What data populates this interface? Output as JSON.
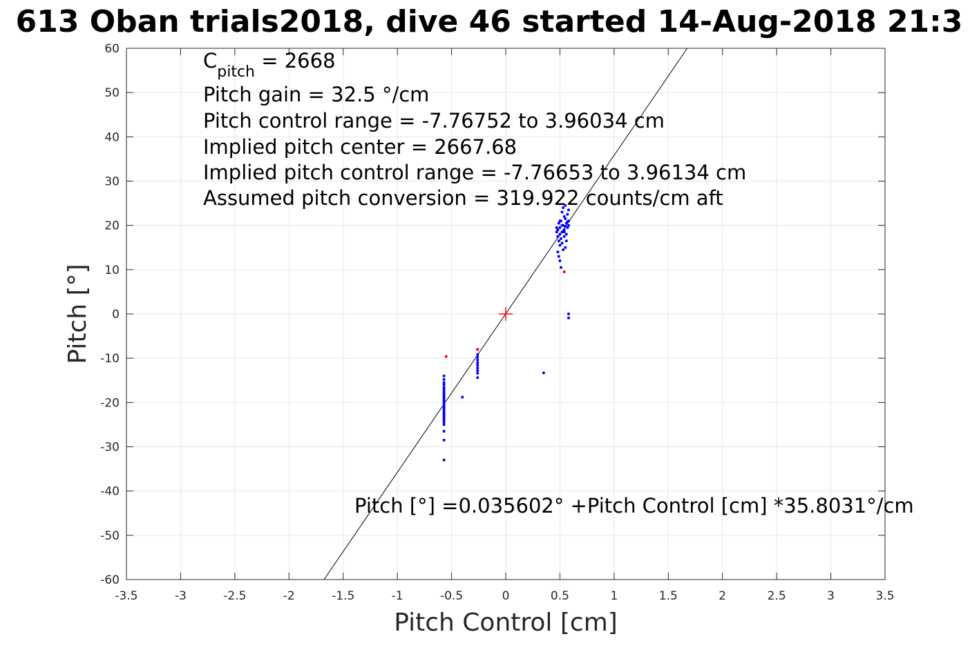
{
  "chart_data": {
    "type": "scatter",
    "title": "613 Oban trials2018, dive 46 started 14-Aug-2018 21:3",
    "xlabel": "Pitch Control [cm]",
    "ylabel": "Pitch [°]",
    "xlim": [
      -3.5,
      3.5
    ],
    "ylim": [
      -60,
      60
    ],
    "xticks": [
      -3.5,
      -3,
      -2.5,
      -2,
      -1.5,
      -1,
      -0.5,
      0,
      0.5,
      1,
      1.5,
      2,
      2.5,
      3,
      3.5
    ],
    "xtick_labels": [
      "-3.5",
      "-3",
      "-2.5",
      "-2",
      "-1.5",
      "-1",
      "-0.5",
      "0",
      "0.5",
      "1",
      "1.5",
      "2",
      "2.5",
      "3",
      "3.5"
    ],
    "yticks": [
      -60,
      -50,
      -40,
      -30,
      -20,
      -10,
      0,
      10,
      20,
      30,
      40,
      50,
      60
    ],
    "ytick_labels": [
      "-60",
      "-50",
      "-40",
      "-30",
      "-20",
      "-10",
      "0",
      "10",
      "20",
      "30",
      "40",
      "50",
      "60"
    ],
    "grid": true,
    "fit_line": {
      "intercept": 0.035602,
      "slope": 35.8031,
      "color": "#000000"
    },
    "center_marker": {
      "x": 0,
      "y": 0,
      "color": "#ff0000",
      "symbol": "+"
    },
    "annotations": {
      "c_pitch_symbol": "C",
      "c_pitch_sub": "pitch",
      "c_pitch_value": " = 2668",
      "lines": [
        "Pitch gain = 32.5 °/cm",
        "Pitch control range = -7.76752 to 3.96034 cm",
        "Implied pitch center = 2667.68",
        "Implied pitch control range = -7.76653 to 3.96134 cm",
        "Assumed pitch conversion = 319.922 counts/cm aft"
      ],
      "equation": "Pitch [°] =0.035602° +Pitch Control [cm] *35.8031°/cm"
    },
    "series": [
      {
        "color": "#0000ff",
        "points": [
          [
            -0.57,
            -14.0
          ],
          [
            -0.57,
            -14.8
          ],
          [
            -0.57,
            -15.5
          ],
          [
            -0.57,
            -16.0
          ],
          [
            -0.57,
            -16.6
          ],
          [
            -0.57,
            -17.1
          ],
          [
            -0.57,
            -17.6
          ],
          [
            -0.57,
            -18.0
          ],
          [
            -0.57,
            -18.4
          ],
          [
            -0.57,
            -18.8
          ],
          [
            -0.57,
            -19.2
          ],
          [
            -0.57,
            -19.6
          ],
          [
            -0.57,
            -20.0
          ],
          [
            -0.57,
            -20.4
          ],
          [
            -0.57,
            -20.8
          ],
          [
            -0.57,
            -21.2
          ],
          [
            -0.57,
            -21.6
          ],
          [
            -0.57,
            -22.0
          ],
          [
            -0.57,
            -22.4
          ],
          [
            -0.57,
            -22.8
          ],
          [
            -0.57,
            -23.2
          ],
          [
            -0.57,
            -23.6
          ],
          [
            -0.57,
            -24.0
          ],
          [
            -0.57,
            -24.5
          ],
          [
            -0.57,
            -25.0
          ],
          [
            -0.57,
            -26.5
          ],
          [
            -0.57,
            -28.5
          ],
          [
            -0.57,
            -33.0
          ],
          [
            -0.4,
            -18.8
          ],
          [
            0.35,
            -13.3
          ],
          [
            -0.26,
            -8.0
          ],
          [
            -0.26,
            -9.2
          ],
          [
            -0.26,
            -9.8
          ],
          [
            -0.26,
            -10.4
          ],
          [
            -0.26,
            -11.0
          ],
          [
            -0.26,
            -11.6
          ],
          [
            -0.26,
            -12.2
          ],
          [
            -0.26,
            -12.8
          ],
          [
            -0.26,
            -13.4
          ],
          [
            -0.26,
            -14.4
          ],
          [
            0.47,
            18.5
          ],
          [
            0.48,
            17.5
          ],
          [
            0.48,
            19.0
          ],
          [
            0.49,
            16.5
          ],
          [
            0.49,
            20.5
          ],
          [
            0.5,
            18.0
          ],
          [
            0.5,
            15.5
          ],
          [
            0.5,
            19.5
          ],
          [
            0.51,
            17.0
          ],
          [
            0.51,
            21.0
          ],
          [
            0.52,
            18.5
          ],
          [
            0.52,
            23.0
          ],
          [
            0.52,
            16.0
          ],
          [
            0.53,
            20.0
          ],
          [
            0.53,
            14.5
          ],
          [
            0.54,
            19.0
          ],
          [
            0.54,
            22.0
          ],
          [
            0.54,
            17.5
          ],
          [
            0.55,
            21.5
          ],
          [
            0.55,
            15.0
          ],
          [
            0.55,
            24.5
          ],
          [
            0.56,
            20.5
          ],
          [
            0.56,
            18.0
          ],
          [
            0.57,
            22.5
          ],
          [
            0.57,
            19.5
          ],
          [
            0.58,
            21.0
          ],
          [
            0.58,
            20.0
          ],
          [
            0.58,
            23.5
          ],
          [
            0.49,
            13.0
          ],
          [
            0.48,
            14.0
          ],
          [
            0.5,
            12.0
          ],
          [
            0.51,
            10.5
          ],
          [
            0.53,
            24.0
          ],
          [
            0.56,
            16.5
          ],
          [
            0.52,
            20.0
          ],
          [
            0.47,
            19.5
          ],
          [
            0.5,
            21.0
          ],
          [
            0.54,
            18.5
          ],
          [
            0.57,
            20.8
          ],
          [
            0.55,
            19.8
          ],
          [
            0.58,
            0.0
          ],
          [
            0.58,
            -0.9
          ]
        ]
      },
      {
        "color": "#ff0000",
        "points": [
          [
            -0.55,
            -9.6
          ],
          [
            -0.26,
            -8.0
          ],
          [
            0.54,
            9.5
          ]
        ]
      }
    ]
  }
}
